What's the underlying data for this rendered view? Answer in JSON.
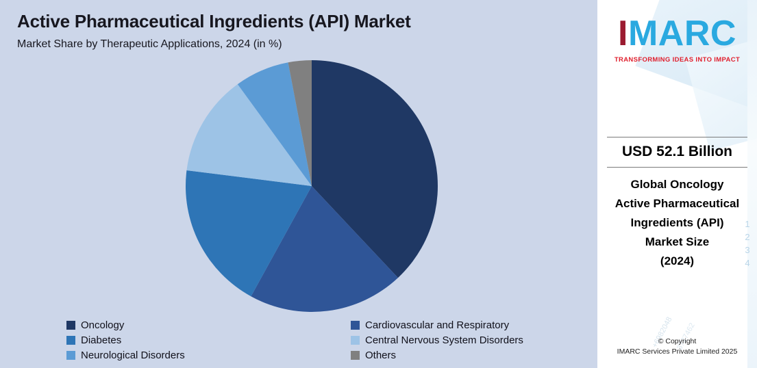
{
  "header": {
    "title": "Active Pharmaceutical Ingredients (API) Market",
    "subtitle": "Market Share by Therapeutic Applications, 2024 (in %)"
  },
  "chart_data": {
    "type": "pie",
    "title": "Active Pharmaceutical Ingredients (API) Market",
    "subtitle": "Market Share by Therapeutic Applications, 2024 (in %)",
    "labels": [
      "Oncology",
      "Cardiovascular and Respiratory",
      "Diabetes",
      "Central Nervous System Disorders",
      "Neurological Disorders",
      "Others"
    ],
    "values": [
      38,
      20,
      19,
      13,
      7,
      3
    ],
    "unit": "%",
    "colors": [
      "#1F3864",
      "#2F5597",
      "#2E75B6",
      "#9DC3E6",
      "#5B9BD5",
      "#808080"
    ],
    "start_angle_deg": -90,
    "direction": "clockwise",
    "legend_position": "bottom",
    "legend_columns": 2,
    "background_color": "#CCD6E9"
  },
  "sidebar": {
    "logo": {
      "i": "I",
      "rest": "MARC"
    },
    "tagline": "TRANSFORMING IDEAS INTO IMPACT",
    "market_value": "USD 52.1 Billion",
    "market_label_lines": [
      "Global Oncology",
      "Active Pharmaceutical",
      "Ingredients (API)",
      "Market Size",
      "(2024)"
    ],
    "copyright_line1": "© Copyright",
    "copyright_line2": "IMARC Services Private Limited 2025",
    "decor_numbers_vertical": "1 2 3 4",
    "decor_number_a": "+6982048",
    "decor_number_b": "3727462",
    "brand_blue": "#2AA9E0",
    "brand_red": "#E01F2D",
    "brand_maroon": "#9B1B30"
  }
}
